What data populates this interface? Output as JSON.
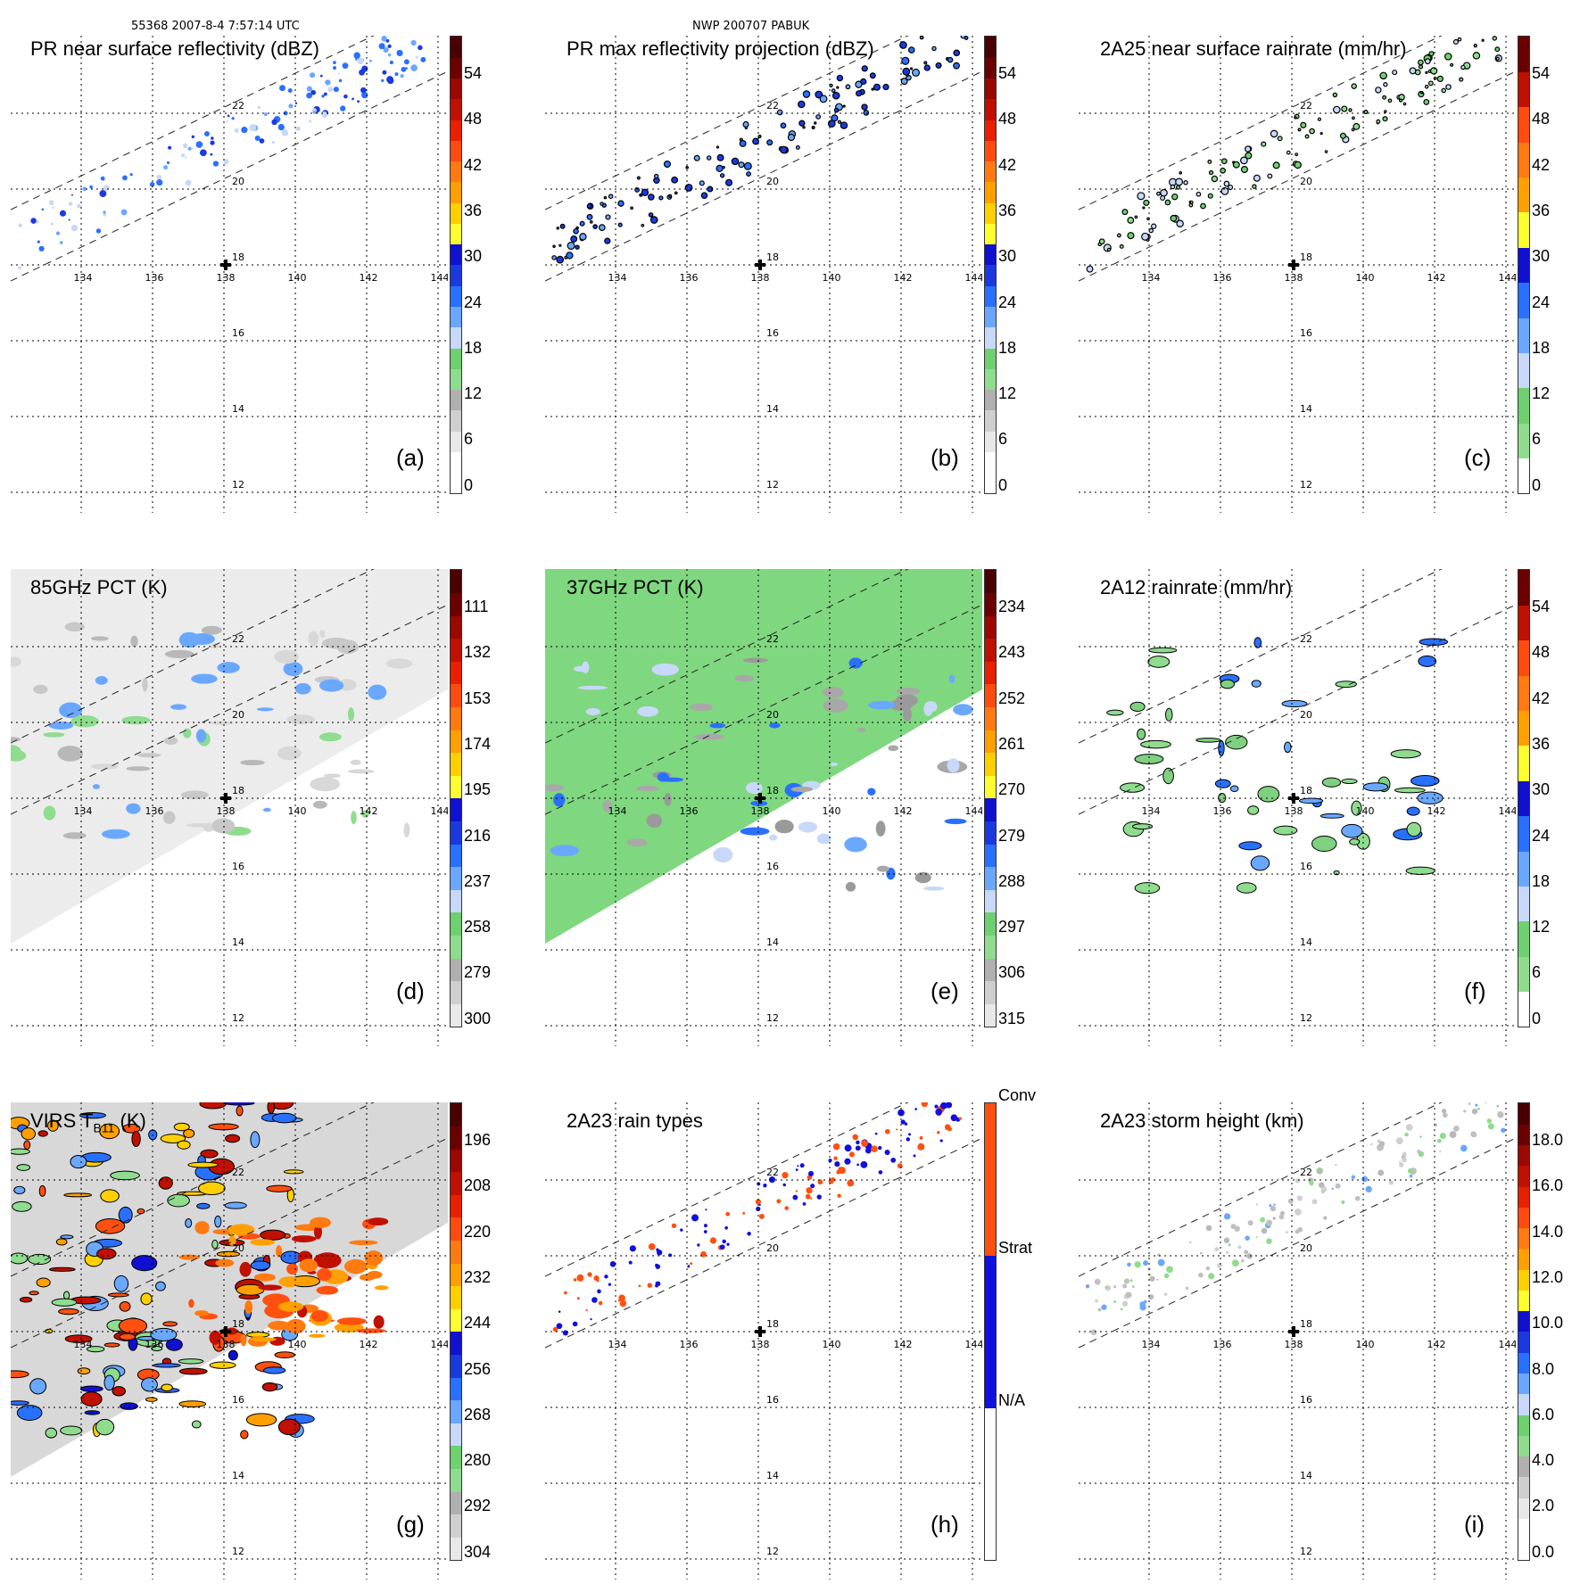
{
  "header": {
    "orbit_time": "55368 2007-8-4 7:57:14 UTC",
    "storm": "NWP 200707 PABUK"
  },
  "axes": {
    "lon_labels": [
      "134",
      "136",
      "138",
      "140",
      "142",
      "144"
    ],
    "lat_labels_top": [
      "22",
      "20",
      "18",
      "16",
      "14",
      "12"
    ]
  },
  "panels": [
    {
      "id": "a",
      "title": "PR near surface reflectivity (dBZ)",
      "label": "(a)",
      "ticks": [
        "54",
        "48",
        "42",
        "36",
        "30",
        "24",
        "18",
        "12",
        "6",
        "0"
      ]
    },
    {
      "id": "b",
      "title": "PR max reflectivity projection (dBZ)",
      "label": "(b)",
      "ticks": [
        "54",
        "48",
        "42",
        "36",
        "30",
        "24",
        "18",
        "12",
        "6",
        "0"
      ]
    },
    {
      "id": "c",
      "title": "2A25 near surface rainrate (mm/hr)",
      "label": "(c)",
      "ticks": [
        "54",
        "48",
        "42",
        "36",
        "30",
        "24",
        "18",
        "12",
        "6",
        "0"
      ]
    },
    {
      "id": "d",
      "title": "85GHz PCT (K)",
      "label": "(d)",
      "ticks": [
        "111",
        "132",
        "153",
        "174",
        "195",
        "216",
        "237",
        "258",
        "279",
        "300"
      ]
    },
    {
      "id": "e",
      "title": "37GHz PCT (K)",
      "label": "(e)",
      "ticks": [
        "234",
        "243",
        "252",
        "261",
        "270",
        "279",
        "288",
        "297",
        "306",
        "315"
      ]
    },
    {
      "id": "f",
      "title": "2A12 rainrate (mm/hr)",
      "label": "(f)",
      "ticks": [
        "54",
        "48",
        "42",
        "36",
        "30",
        "24",
        "18",
        "12",
        "6",
        "0"
      ]
    },
    {
      "id": "g",
      "title_main": "VIRS T",
      "title_sub": "B11",
      "title_unit": " (K)",
      "label": "(g)",
      "ticks": [
        "196",
        "208",
        "220",
        "232",
        "244",
        "256",
        "268",
        "280",
        "292",
        "304"
      ]
    },
    {
      "id": "h",
      "title": "2A23 rain types",
      "label": "(h)",
      "ticks": [
        "Conv",
        "Strat",
        "N/A"
      ]
    },
    {
      "id": "i",
      "title": "2A23 storm height (km)",
      "label": "(i)",
      "ticks": [
        "18.0",
        "16.0",
        "14.0",
        "12.0",
        "10.0",
        "8.0",
        "6.0",
        "4.0",
        "2.0",
        "0.0"
      ]
    }
  ],
  "colors": {
    "dbz": [
      "#ffffff",
      "#ffffff",
      "#e8e8e8",
      "#cfcfcf",
      "#b0b0b0",
      "#8fdc8f",
      "#6fd06f",
      "#c8d8f8",
      "#6aa8ff",
      "#2a70ff",
      "#1a3ae0",
      "#1010d0",
      "#ffff30",
      "#ffd000",
      "#ffa000",
      "#ff7a10",
      "#ff4a10",
      "#e82000",
      "#c01000",
      "#9a0800",
      "#6a0000",
      "#4a0000"
    ],
    "rain": [
      "#8fdc8f",
      "#6fd06f",
      "#c8d8f8",
      "#6aa8ff",
      "#2a70ff",
      "#1010d0",
      "#ffff30",
      "#ffa000",
      "#ff7a10",
      "#ff4a10",
      "#c01000",
      "#6a0000"
    ],
    "types": [
      "#ffffff",
      "#1010e0",
      "#ff5010"
    ],
    "conv": "#ff5010",
    "strat": "#1010e0",
    "cross": "#000000"
  }
}
